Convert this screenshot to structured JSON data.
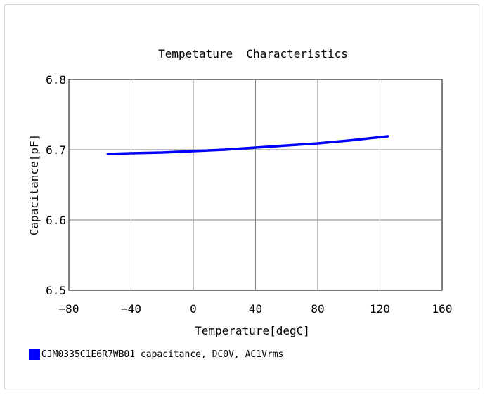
{
  "chart_data": {
    "type": "line",
    "title": "Tempetature  Characteristics",
    "xlabel": "Temperature[degC]",
    "ylabel": "Capacitance[pF]",
    "xlim": [
      -80,
      160
    ],
    "ylim": [
      6.5,
      6.8
    ],
    "x_ticks": [
      -80,
      -40,
      0,
      40,
      80,
      120,
      160
    ],
    "x_tick_labels": [
      "−80",
      "−40",
      "0",
      "40",
      "80",
      "120",
      "160"
    ],
    "y_ticks": [
      6.5,
      6.6,
      6.7,
      6.8
    ],
    "y_tick_labels": [
      "6.5",
      "6.6",
      "6.7",
      "6.8"
    ],
    "grid": true,
    "legend_position": "bottom-left",
    "series": [
      {
        "name": "GJM0335C1E6R7WB01 capacitance, DC0V, AC1Vrms",
        "color": "#0000ff",
        "x": [
          -55,
          -40,
          -20,
          0,
          20,
          40,
          60,
          80,
          100,
          125
        ],
        "y": [
          6.694,
          6.695,
          6.696,
          6.698,
          6.7,
          6.703,
          6.706,
          6.709,
          6.713,
          6.719
        ]
      }
    ]
  }
}
